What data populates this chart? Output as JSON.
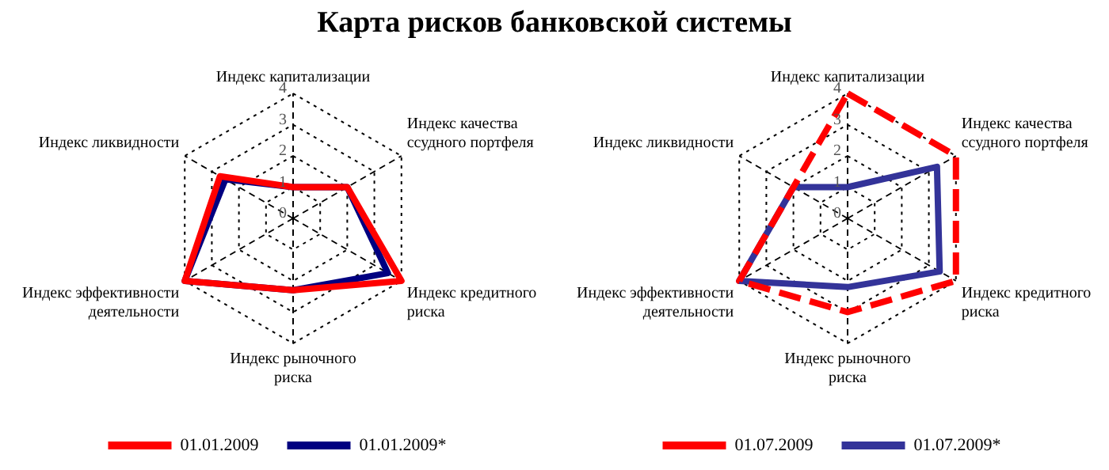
{
  "chart_data": [
    {
      "type": "radar",
      "title": "Карта рисков банковской системы",
      "categories": [
        "Индекс капитализации",
        "Индекс качества ссудного портфеля",
        "Индекс кредитного риска",
        "Индекс рыночного риска",
        "Индекс эффективности деятельности",
        "Индекс ликвидности"
      ],
      "series": [
        {
          "name": "01.01.2009",
          "color": "#ff0000",
          "values": [
            1,
            2,
            4,
            2.3,
            4,
            2.7
          ]
        },
        {
          "name": "01.01.2009*",
          "color": "#000080",
          "values": [
            1,
            2,
            3.5,
            2.3,
            4,
            2.5
          ]
        }
      ],
      "ylim": [
        0,
        4
      ],
      "yticks": [
        0,
        1,
        2,
        3,
        4
      ],
      "grid": true,
      "legend": "bottom",
      "marker": "none",
      "line_style": "solid"
    },
    {
      "type": "radar",
      "categories": [
        "Индекс капитализации",
        "Индекс качества ссудного портфеля",
        "Индекс кредитного риска",
        "Индекс рыночного риска",
        "Индекс эффективности деятельности",
        "Индекс ликвидности"
      ],
      "series": [
        {
          "name": "01.07.2009",
          "color": "#ff0000",
          "values": [
            4,
            4,
            4,
            3,
            4,
            2
          ],
          "line_style": "dashed"
        },
        {
          "name": "01.07.2009*",
          "color": "#333399",
          "values": [
            1,
            3.3,
            3.4,
            2.2,
            4,
            2
          ]
        }
      ],
      "ylim": [
        0,
        4
      ],
      "yticks": [
        0,
        1,
        2,
        3,
        4
      ],
      "grid": true,
      "legend": "bottom",
      "marker": "none",
      "line_style": "solid"
    }
  ]
}
